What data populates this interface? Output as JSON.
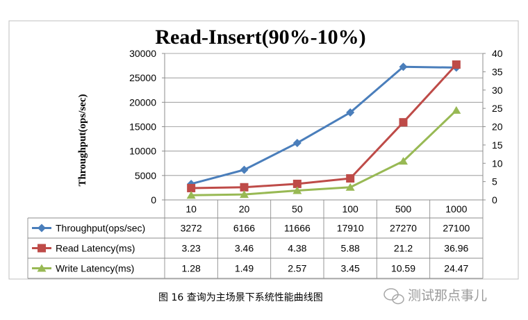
{
  "chart_data": {
    "type": "line",
    "title": "Read-Insert(90%-10%)",
    "ylabel": "Throughput(ops/sec)",
    "ylim": [
      0,
      30000
    ],
    "y2lim": [
      0,
      40
    ],
    "yticks": [
      "30000",
      "25000",
      "20000",
      "15000",
      "10000",
      "5000",
      "0"
    ],
    "y2ticks": [
      "40",
      "35",
      "30",
      "25",
      "20",
      "15",
      "10",
      "5",
      "0"
    ],
    "categories": [
      "10",
      "20",
      "50",
      "100",
      "500",
      "1000"
    ],
    "grid": "horizontal",
    "legend": "data-table",
    "series": [
      {
        "name": "Throughput(ops/sec)",
        "axis": "left",
        "color": "#4a7ebb",
        "marker": "diamond",
        "values": [
          3272,
          6166,
          11666,
          17910,
          27270,
          27100
        ],
        "labels": [
          "3272",
          "6166",
          "11666",
          "17910",
          "27270",
          "27100"
        ]
      },
      {
        "name": "Read Latency(ms)",
        "axis": "right",
        "color": "#be4b48",
        "marker": "square",
        "values": [
          3.23,
          3.46,
          4.38,
          5.88,
          21.2,
          36.96
        ],
        "labels": [
          "3.23",
          "3.46",
          "4.38",
          "5.88",
          "21.2",
          "36.96"
        ]
      },
      {
        "name": "Write Latency(ms)",
        "axis": "right",
        "color": "#98b954",
        "marker": "triangle",
        "values": [
          1.28,
          1.49,
          2.57,
          3.45,
          10.59,
          24.47
        ],
        "labels": [
          "1.28",
          "1.49",
          "2.57",
          "3.45",
          "10.59",
          "24.47"
        ]
      }
    ]
  },
  "caption": "图  16  查询为主场景下系统性能曲线图",
  "watermark": "测试那点事儿"
}
